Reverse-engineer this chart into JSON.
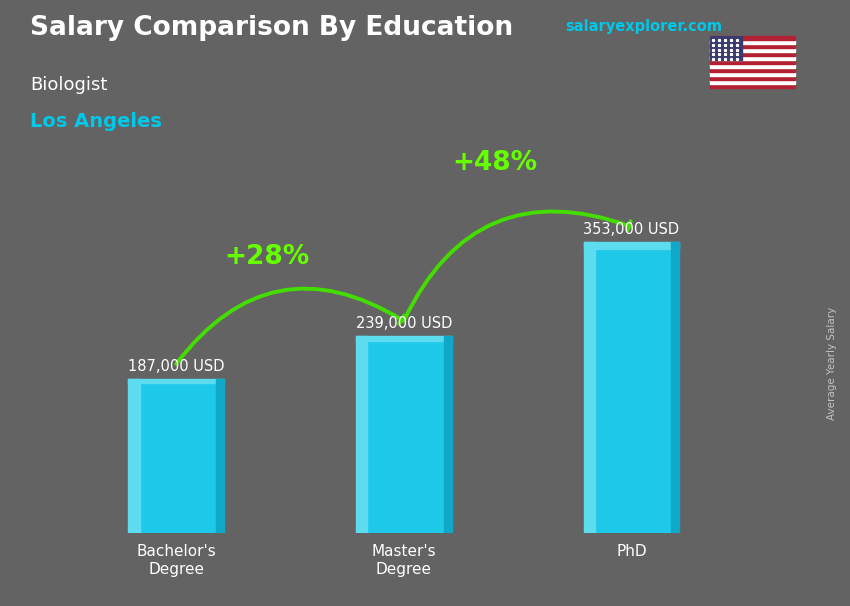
{
  "title": "Salary Comparison By Education",
  "subtitle_job": "Biologist",
  "subtitle_location": "Los Angeles",
  "ylabel": "Average Yearly Salary",
  "categories": [
    "Bachelor's\nDegree",
    "Master's\nDegree",
    "PhD"
  ],
  "values": [
    187000,
    239000,
    353000
  ],
  "value_labels": [
    "187,000 USD",
    "239,000 USD",
    "353,000 USD"
  ],
  "bar_color_main": "#1EC8E8",
  "bar_color_light": "#5DDCF0",
  "bar_color_dark": "#0FA8C8",
  "pct_labels": [
    "+28%",
    "+48%"
  ],
  "pct_color": "#66FF00",
  "arrow_color": "#44DD00",
  "background_color": "#636363",
  "title_color": "#FFFFFF",
  "subtitle_job_color": "#FFFFFF",
  "subtitle_loc_color": "#00C8E8",
  "value_label_color": "#FFFFFF",
  "tick_label_color": "#FFFFFF",
  "site_text": "salaryexplorer.com",
  "site_color": "#00C8E8",
  "ylabel_color": "#CCCCCC",
  "ylim": [
    0,
    440000
  ],
  "bar_width": 0.42
}
